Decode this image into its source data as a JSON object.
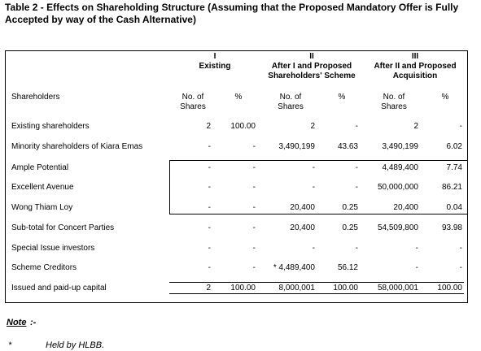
{
  "title": "Table 2 - Effects on Shareholding Structure (Assuming that the Proposed Mandatory Offer is Fully Accepted by way of the Cash Alternative)",
  "columns": {
    "first_header": "Shareholders",
    "groups": [
      {
        "numeral": "I",
        "label": "Existing"
      },
      {
        "numeral": "II",
        "label": "After I and Proposed Shareholders' Scheme"
      },
      {
        "numeral": "III",
        "label": "After II and Proposed Acquisition"
      }
    ],
    "shares_label": "No. of Shares",
    "pct_label": "%"
  },
  "rows": [
    {
      "name": "Existing shareholders",
      "v": [
        "2",
        "100.00",
        "2",
        "-",
        "2",
        "-"
      ]
    },
    {
      "name": "Minority shareholders of Kiara Emas",
      "v": [
        "-",
        "-",
        "3,490,199",
        "43.63",
        "3,490,199",
        "6.02"
      ]
    },
    {
      "name": "Ample Potential",
      "v": [
        "-",
        "-",
        "-",
        "-",
        "4,489,400",
        "7.74"
      ]
    },
    {
      "name": "Excellent Avenue",
      "v": [
        "-",
        "-",
        "-",
        "-",
        "50,000,000",
        "86.21"
      ]
    },
    {
      "name": "Wong Thiam Loy",
      "v": [
        "-",
        "-",
        "20,400",
        "0.25",
        "20,400",
        "0.04"
      ]
    },
    {
      "name": "Sub-total for Concert Parties",
      "v": [
        "-",
        "-",
        "20,400",
        "0.25",
        "54,509,800",
        "93.98"
      ]
    },
    {
      "name": "Special Issue investors",
      "v": [
        "-",
        "-",
        "-",
        "-",
        "-",
        "-"
      ]
    },
    {
      "name": "Scheme Creditors",
      "v": [
        "-",
        "-",
        "* 4,489,400",
        "56.12",
        "-",
        "-"
      ]
    },
    {
      "name": "Issued and paid-up capital",
      "v": [
        "2",
        "100.00",
        "8,000,001",
        "100.00",
        "58,000,001",
        "100.00"
      ]
    }
  ],
  "note": {
    "label": "Note",
    "dash": ":-",
    "marker": "*",
    "text": "Held by HLBB."
  }
}
